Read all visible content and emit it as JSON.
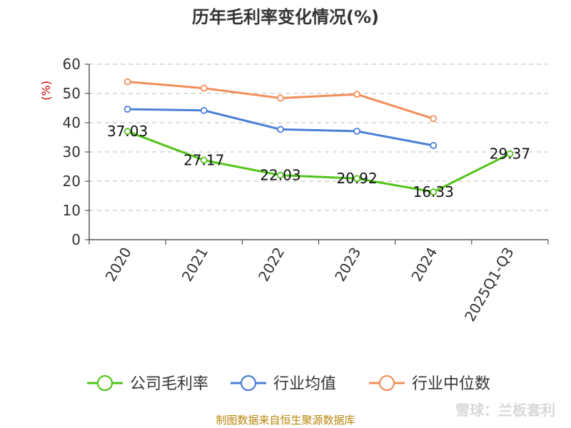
{
  "chart_data": {
    "type": "line",
    "title": "历年毛利率变化情况(%)",
    "ylabel": "(%)",
    "xlabel": "",
    "categories": [
      "2020",
      "2021",
      "2022",
      "2023",
      "2024",
      "2025Q1-Q3"
    ],
    "ylim": [
      0,
      60
    ],
    "yticks": [
      0,
      10,
      20,
      30,
      40,
      50,
      60
    ],
    "grid": true,
    "legend_position": "bottom",
    "series": [
      {
        "name": "公司毛利率",
        "color": "#52c41a",
        "values": [
          37.03,
          27.17,
          22.03,
          20.92,
          16.33,
          29.37
        ],
        "labels": [
          "37.03",
          "27.17",
          "22.03",
          "20.92",
          "16.33",
          "29.37"
        ]
      },
      {
        "name": "行业均值",
        "color": "#4a7fd8",
        "values": [
          44.6,
          44.2,
          37.7,
          37.1,
          32.2,
          null
        ]
      },
      {
        "name": "行业中位数",
        "color": "#f28f5a",
        "values": [
          54.0,
          51.8,
          48.4,
          49.7,
          41.4,
          null
        ]
      }
    ]
  },
  "footer": {
    "source": "制图数据来自恒生聚源数据库",
    "watermark": "雪球：兰板套利"
  }
}
